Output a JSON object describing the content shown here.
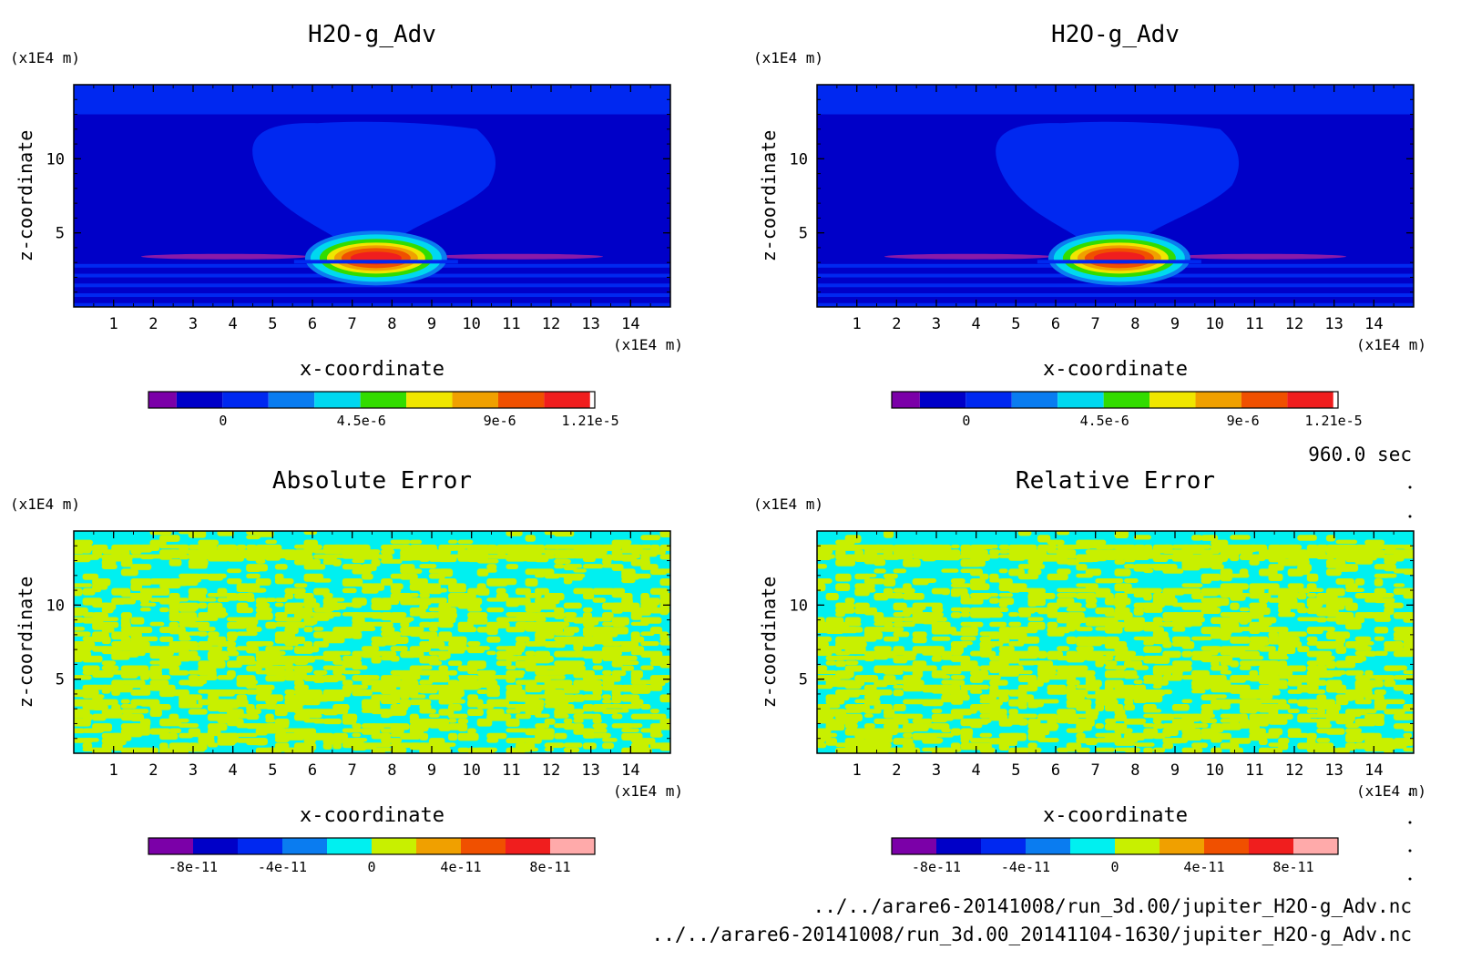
{
  "time_label": "960.0 sec",
  "footer": {
    "line1": "../../arare6-20141008/run_3d.00/jupiter_H2O-g_Adv.nc",
    "line2": "../../arare6-20141008/run_3d.00_20141104-1630/jupiter_H2O-g_Adv.nc"
  },
  "colors": {
    "field_scale": [
      "#7b00a8",
      "#0000c8",
      "#0028f0",
      "#0a7cf0",
      "#00d8f0",
      "#32dc00",
      "#f0e600",
      "#f0a000",
      "#f05000",
      "#f01e1e",
      "#ffffff"
    ],
    "error_scale": [
      "#7b00a8",
      "#0000c8",
      "#0028f0",
      "#0a7cf0",
      "#00f0f0",
      "#c8f000",
      "#f0a000",
      "#f05000",
      "#f01e1e",
      "#ffaaaa"
    ]
  },
  "chart_data": [
    {
      "type": "heatmap",
      "title": "H2O-g_Adv",
      "xlabel": "x-coordinate",
      "ylabel": "z-coordinate",
      "x_unit": "(x1E4 m)",
      "y_unit": "(x1E4 m)",
      "xlim": [
        0,
        15
      ],
      "ylim": [
        0,
        15
      ],
      "x_ticks": [
        "1",
        "2",
        "3",
        "4",
        "5",
        "6",
        "7",
        "8",
        "9",
        "10",
        "11",
        "12",
        "13",
        "14"
      ],
      "y_ticks": [
        "5",
        "10"
      ],
      "colorbar_labels": [
        "0",
        "4.5e-6",
        "9e-6",
        "1.21e-5"
      ]
    },
    {
      "type": "heatmap",
      "title": "H2O-g_Adv",
      "xlabel": "x-coordinate",
      "ylabel": "z-coordinate",
      "x_unit": "(x1E4 m)",
      "y_unit": "(x1E4 m)",
      "xlim": [
        0,
        15
      ],
      "ylim": [
        0,
        15
      ],
      "x_ticks": [
        "1",
        "2",
        "3",
        "4",
        "5",
        "6",
        "7",
        "8",
        "9",
        "10",
        "11",
        "12",
        "13",
        "14"
      ],
      "y_ticks": [
        "5",
        "10"
      ],
      "colorbar_labels": [
        "0",
        "4.5e-6",
        "9e-6",
        "1.21e-5"
      ]
    },
    {
      "type": "heatmap",
      "title": "Absolute Error",
      "xlabel": "x-coordinate",
      "ylabel": "z-coordinate",
      "x_unit": "(x1E4 m)",
      "y_unit": "(x1E4 m)",
      "xlim": [
        0,
        15
      ],
      "ylim": [
        0,
        15
      ],
      "x_ticks": [
        "1",
        "2",
        "3",
        "4",
        "5",
        "6",
        "7",
        "8",
        "9",
        "10",
        "11",
        "12",
        "13",
        "14"
      ],
      "y_ticks": [
        "5",
        "10"
      ],
      "colorbar_labels": [
        "-8e-11",
        "-4e-11",
        "0",
        "4e-11",
        "8e-11"
      ]
    },
    {
      "type": "heatmap",
      "title": "Relative Error",
      "xlabel": "x-coordinate",
      "ylabel": "z-coordinate",
      "x_unit": "(x1E4 m)",
      "y_unit": "(x1E4 m)",
      "xlim": [
        0,
        15
      ],
      "ylim": [
        0,
        15
      ],
      "x_ticks": [
        "1",
        "2",
        "3",
        "4",
        "5",
        "6",
        "7",
        "8",
        "9",
        "10",
        "11",
        "12",
        "13",
        "14"
      ],
      "y_ticks": [
        "5",
        "10"
      ],
      "colorbar_labels": [
        "-8e-11",
        "-4e-11",
        "0",
        "4e-11",
        "8e-11"
      ]
    }
  ]
}
